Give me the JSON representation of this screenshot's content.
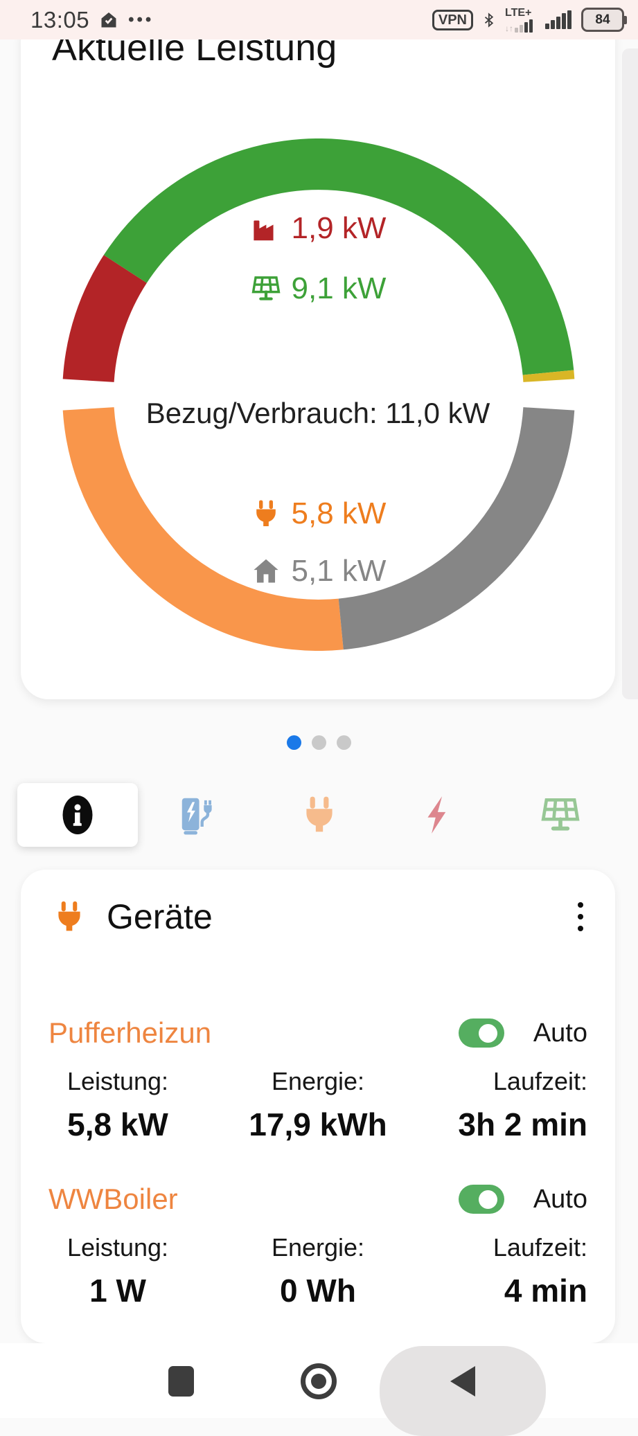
{
  "status_bar": {
    "time": "13:05",
    "more_dots": "•••",
    "vpn_label": "VPN",
    "network_label": "LTE+",
    "battery_percent": "84"
  },
  "power_card": {
    "title": "Aktuelle Leistung"
  },
  "chart_data": {
    "type": "donut-gauge",
    "center_label": "Bezug/Verbrauch: 11,0 kW",
    "unit": "kW",
    "top_gauge": {
      "name": "Erzeugung und Netzbezug",
      "segments": [
        {
          "name": "netzbezug",
          "value_kw": 1.9,
          "label": "1,9 kW",
          "color": "#b32427"
        },
        {
          "name": "pv-erzeugung",
          "value_kw": 9.1,
          "label": "9,1 kW",
          "color": "#3da138"
        },
        {
          "name": "batterie",
          "value_kw": 0,
          "label": null,
          "color": "#d9b626",
          "min_degrees": 2
        }
      ]
    },
    "bottom_gauge": {
      "name": "Verbrauch",
      "segments": [
        {
          "name": "geraete",
          "value_kw": 5.8,
          "label": "5,8 kW",
          "color": "#f9964b"
        },
        {
          "name": "haus",
          "value_kw": 5.1,
          "label": "5,1 kW",
          "color": "#868686"
        }
      ]
    },
    "labels": [
      {
        "icon": "factory-icon",
        "text": "1,9 kW",
        "color": "#b32427"
      },
      {
        "icon": "solar-panel-icon",
        "text": "9,1 kW",
        "color": "#3da138"
      },
      {
        "icon": "plug-icon",
        "text": "5,8 kW",
        "color": "#ee7d1e"
      },
      {
        "icon": "house-icon",
        "text": "5,1 kW",
        "color": "#868686"
      }
    ]
  },
  "carousel": {
    "dots": [
      {
        "active": true
      },
      {
        "active": false
      },
      {
        "active": false
      }
    ],
    "active_color": "#1b79e8",
    "inactive_color": "#c9c9c9"
  },
  "tabs": [
    {
      "name": "info",
      "icon": "info-icon",
      "color": "#0c0c0c",
      "active": true
    },
    {
      "name": "ev-charger",
      "icon": "ev-charger-icon",
      "color": "#8cb3da",
      "active": false
    },
    {
      "name": "devices",
      "icon": "plug-icon",
      "color": "#f6bb8c",
      "active": false
    },
    {
      "name": "power",
      "icon": "bolt-icon",
      "color": "#dd868e",
      "active": false
    },
    {
      "name": "solar",
      "icon": "solar-panel-icon",
      "color": "#97c795",
      "active": false
    }
  ],
  "devices_card": {
    "title": "Geräte",
    "title_icon_color": "#ee7d1e",
    "devices": [
      {
        "name": "Pufferheizun",
        "mode": "Auto",
        "toggle_on": true,
        "stats": [
          {
            "label": "Leistung:",
            "value": "5,8 kW"
          },
          {
            "label": "Energie:",
            "value": "17,9 kWh"
          },
          {
            "label": "Laufzeit:",
            "value": "3h 2 min"
          }
        ]
      },
      {
        "name": "WWBoiler",
        "mode": "Auto",
        "toggle_on": true,
        "stats": [
          {
            "label": "Leistung:",
            "value": "1 W"
          },
          {
            "label": "Energie:",
            "value": "0 Wh"
          },
          {
            "label": "Laufzeit:",
            "value": "4 min"
          }
        ]
      }
    ]
  }
}
